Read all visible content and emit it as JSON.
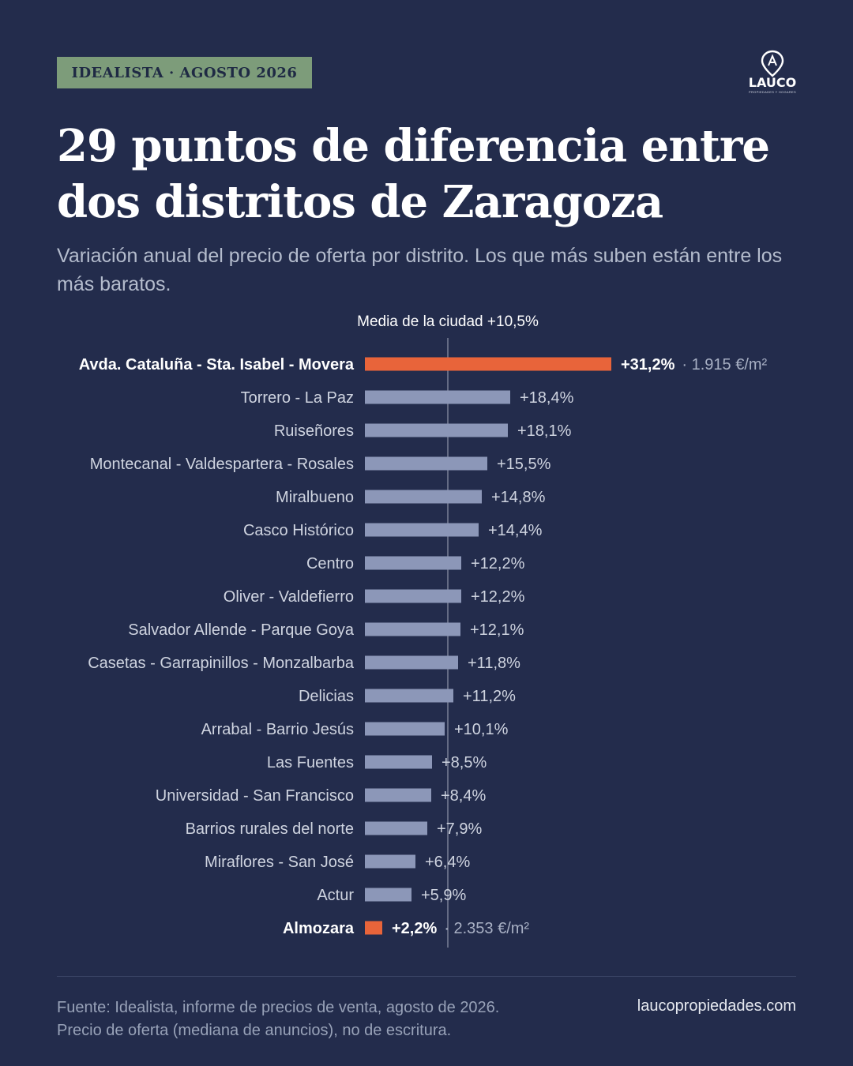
{
  "badge": "IDEALISTA · AGOSTO 2026",
  "logo": {
    "text": "LAUCO",
    "tagline": "PROPIEDADES Y HOGARES",
    "icon": "map-pin-a-icon"
  },
  "title": "29 puntos de diferencia entre dos distritos de Zaragoza",
  "subtitle": "Variación anual del precio de oferta por distrito. Los que más suben están entre los más baratos.",
  "chart_data": {
    "type": "bar",
    "orientation": "horizontal",
    "grid": false,
    "categories": [
      "Avda. Cataluña - Sta. Isabel - Movera",
      "Torrero - La Paz",
      "Ruiseñores",
      "Montecanal - Valdespartera - Rosales",
      "Miralbueno",
      "Casco Histórico",
      "Centro",
      "Oliver - Valdefierro",
      "Salvador Allende - Parque Goya",
      "Casetas - Garrapinillos - Monzalbarba",
      "Delicias",
      "Arrabal - Barrio Jesús",
      "Las Fuentes",
      "Universidad - San Francisco",
      "Barrios rurales del norte",
      "Miraflores - San José",
      "Actur",
      "Almozara"
    ],
    "values": [
      31.2,
      18.4,
      18.1,
      15.5,
      14.8,
      14.4,
      12.2,
      12.2,
      12.1,
      11.8,
      11.2,
      10.1,
      8.5,
      8.4,
      7.9,
      6.4,
      5.9,
      2.2
    ],
    "value_labels": [
      "+31,2%",
      "+18,4%",
      "+18,1%",
      "+15,5%",
      "+14,8%",
      "+14,4%",
      "+12,2%",
      "+12,2%",
      "+12,1%",
      "+11,8%",
      "+11,2%",
      "+10,1%",
      "+8,5%",
      "+8,4%",
      "+7,9%",
      "+6,4%",
      "+5,9%",
      "+2,2%"
    ],
    "highlight": [
      0,
      17
    ],
    "notes": {
      "0": "· 1.915 €/m²",
      "17": "· 2.353 €/m²"
    },
    "reference": {
      "value": 10.5,
      "label": "Media de la ciudad +10,5%"
    },
    "xlim": [
      0,
      31.2
    ],
    "colors": {
      "bar": "#8c97b8",
      "highlight": "#e8643a",
      "reference": "#d0d4e0"
    }
  },
  "footer": {
    "source_line1": "Fuente: Idealista, informe de precios de venta, agosto de 2026.",
    "source_line2": "Precio de oferta (mediana de anuncios), no de escritura.",
    "website": "laucopropiedades.com"
  }
}
